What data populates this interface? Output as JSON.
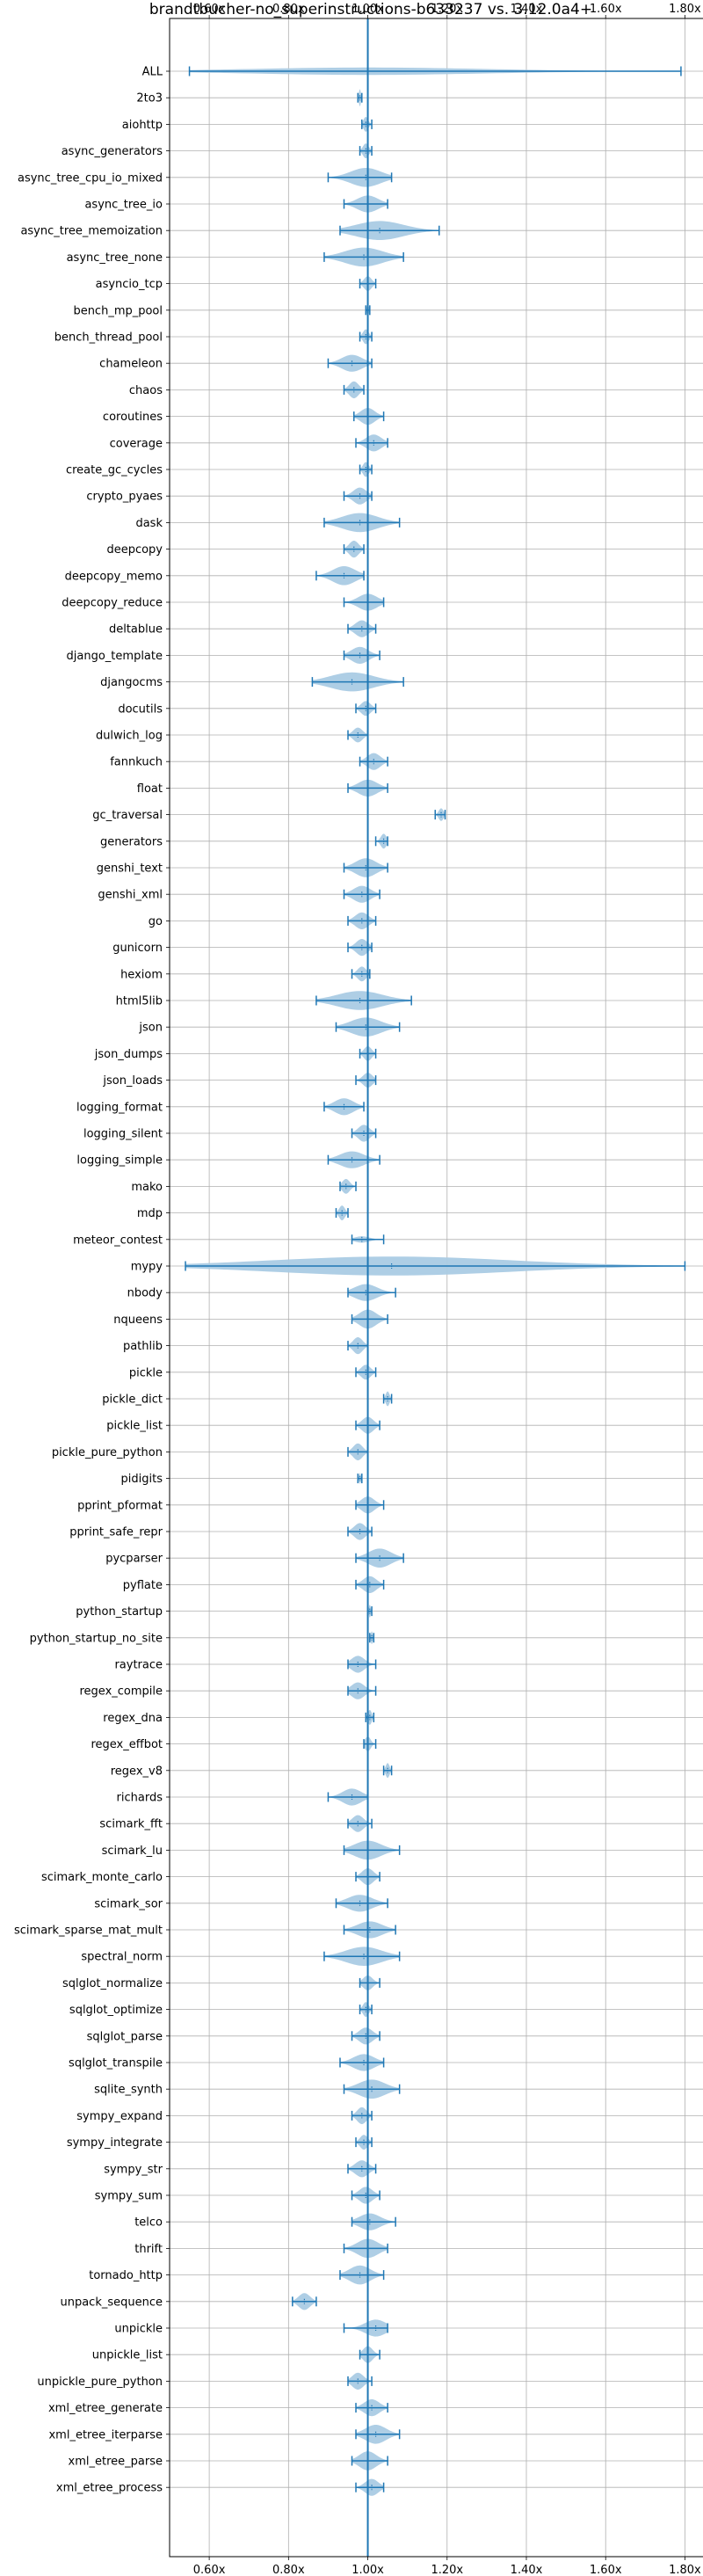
{
  "chart_data": {
    "type": "violin",
    "title": "brandtbucher-no_superinstructions-b633237 vs. 3.12.0a4+",
    "xlabel": "",
    "ylabel": "",
    "xlim": [
      0.5,
      1.85
    ],
    "xticks": [
      0.6,
      0.8,
      1.0,
      1.2,
      1.4,
      1.6,
      1.8
    ],
    "xtick_labels": [
      "0.60x",
      "0.80x",
      "1.00x",
      "1.20x",
      "1.40x",
      "1.60x",
      "1.80x"
    ],
    "tick_positions": [
      "top",
      "bottom"
    ],
    "reference_line": 1.0,
    "grid": true,
    "color": "#1f77b4",
    "fill_color": "#aacbe4",
    "categories": [
      "ALL",
      "2to3",
      "aiohttp",
      "async_generators",
      "async_tree_cpu_io_mixed",
      "async_tree_io",
      "async_tree_memoization",
      "async_tree_none",
      "asyncio_tcp",
      "bench_mp_pool",
      "bench_thread_pool",
      "chameleon",
      "chaos",
      "coroutines",
      "coverage",
      "create_gc_cycles",
      "crypto_pyaes",
      "dask",
      "deepcopy",
      "deepcopy_memo",
      "deepcopy_reduce",
      "deltablue",
      "django_template",
      "djangocms",
      "docutils",
      "dulwich_log",
      "fannkuch",
      "float",
      "gc_traversal",
      "generators",
      "genshi_text",
      "genshi_xml",
      "go",
      "gunicorn",
      "hexiom",
      "html5lib",
      "json",
      "json_dumps",
      "json_loads",
      "logging_format",
      "logging_silent",
      "logging_simple",
      "mako",
      "mdp",
      "meteor_contest",
      "mypy",
      "nbody",
      "nqueens",
      "pathlib",
      "pickle",
      "pickle_dict",
      "pickle_list",
      "pickle_pure_python",
      "pidigits",
      "pprint_pformat",
      "pprint_safe_repr",
      "pycparser",
      "pyflate",
      "python_startup",
      "python_startup_no_site",
      "raytrace",
      "regex_compile",
      "regex_dna",
      "regex_effbot",
      "regex_v8",
      "richards",
      "scimark_fft",
      "scimark_lu",
      "scimark_monte_carlo",
      "scimark_sor",
      "scimark_sparse_mat_mult",
      "spectral_norm",
      "sqlglot_normalize",
      "sqlglot_optimize",
      "sqlglot_parse",
      "sqlglot_transpile",
      "sqlite_synth",
      "sympy_expand",
      "sympy_integrate",
      "sympy_str",
      "sympy_sum",
      "telco",
      "thrift",
      "tornado_http",
      "unpack_sequence",
      "unpickle",
      "unpickle_list",
      "unpickle_pure_python",
      "xml_etree_generate",
      "xml_etree_iterparse",
      "xml_etree_parse",
      "xml_etree_process"
    ],
    "series": [
      {
        "min": 0.55,
        "median": 1.0,
        "max": 1.79,
        "width": 0.35
      },
      {
        "min": 0.975,
        "median": 0.98,
        "max": 0.985,
        "width": 0.8
      },
      {
        "min": 0.985,
        "median": 0.995,
        "max": 1.01,
        "width": 0.7
      },
      {
        "min": 0.98,
        "median": 0.995,
        "max": 1.01,
        "width": 0.7
      },
      {
        "min": 0.9,
        "median": 0.995,
        "max": 1.06,
        "width": 0.9
      },
      {
        "min": 0.94,
        "median": 1.0,
        "max": 1.05,
        "width": 0.8
      },
      {
        "min": 0.93,
        "median": 1.03,
        "max": 1.18,
        "width": 0.9
      },
      {
        "min": 0.89,
        "median": 0.99,
        "max": 1.09,
        "width": 0.9
      },
      {
        "min": 0.98,
        "median": 1.0,
        "max": 1.02,
        "width": 0.7
      },
      {
        "min": 0.995,
        "median": 1.0,
        "max": 1.005,
        "width": 0.6
      },
      {
        "min": 0.98,
        "median": 0.995,
        "max": 1.01,
        "width": 0.7
      },
      {
        "min": 0.9,
        "median": 0.96,
        "max": 1.01,
        "width": 0.8
      },
      {
        "min": 0.94,
        "median": 0.965,
        "max": 0.99,
        "width": 0.8
      },
      {
        "min": 0.965,
        "median": 1.0,
        "max": 1.04,
        "width": 0.8
      },
      {
        "min": 0.97,
        "median": 1.015,
        "max": 1.05,
        "width": 0.8
      },
      {
        "min": 0.98,
        "median": 0.995,
        "max": 1.01,
        "width": 0.7
      },
      {
        "min": 0.94,
        "median": 0.98,
        "max": 1.01,
        "width": 0.8
      },
      {
        "min": 0.89,
        "median": 0.98,
        "max": 1.08,
        "width": 0.9
      },
      {
        "min": 0.94,
        "median": 0.965,
        "max": 0.99,
        "width": 0.8
      },
      {
        "min": 0.87,
        "median": 0.94,
        "max": 0.99,
        "width": 0.9
      },
      {
        "min": 0.94,
        "median": 1.0,
        "max": 1.04,
        "width": 0.8
      },
      {
        "min": 0.95,
        "median": 0.985,
        "max": 1.02,
        "width": 0.8
      },
      {
        "min": 0.94,
        "median": 0.98,
        "max": 1.03,
        "width": 0.8
      },
      {
        "min": 0.86,
        "median": 0.96,
        "max": 1.09,
        "width": 0.9
      },
      {
        "min": 0.97,
        "median": 0.995,
        "max": 1.02,
        "width": 0.7
      },
      {
        "min": 0.95,
        "median": 0.975,
        "max": 1.0,
        "width": 0.7
      },
      {
        "min": 0.98,
        "median": 1.015,
        "max": 1.05,
        "width": 0.8
      },
      {
        "min": 0.95,
        "median": 1.0,
        "max": 1.05,
        "width": 0.8
      },
      {
        "min": 1.17,
        "median": 1.185,
        "max": 1.195,
        "width": 0.6
      },
      {
        "min": 1.02,
        "median": 1.04,
        "max": 1.05,
        "width": 0.7
      },
      {
        "min": 0.94,
        "median": 0.995,
        "max": 1.05,
        "width": 0.9
      },
      {
        "min": 0.94,
        "median": 0.985,
        "max": 1.03,
        "width": 0.8
      },
      {
        "min": 0.95,
        "median": 0.985,
        "max": 1.02,
        "width": 0.8
      },
      {
        "min": 0.95,
        "median": 0.985,
        "max": 1.01,
        "width": 0.8
      },
      {
        "min": 0.96,
        "median": 0.985,
        "max": 1.005,
        "width": 0.7
      },
      {
        "min": 0.87,
        "median": 0.98,
        "max": 1.11,
        "width": 0.9
      },
      {
        "min": 0.92,
        "median": 0.995,
        "max": 1.08,
        "width": 0.9
      },
      {
        "min": 0.98,
        "median": 1.0,
        "max": 1.02,
        "width": 0.7
      },
      {
        "min": 0.97,
        "median": 1.0,
        "max": 1.02,
        "width": 0.7
      },
      {
        "min": 0.89,
        "median": 0.94,
        "max": 0.99,
        "width": 0.8
      },
      {
        "min": 0.96,
        "median": 0.99,
        "max": 1.02,
        "width": 0.8
      },
      {
        "min": 0.9,
        "median": 0.96,
        "max": 1.03,
        "width": 0.8
      },
      {
        "min": 0.93,
        "median": 0.945,
        "max": 0.97,
        "width": 0.7
      },
      {
        "min": 0.92,
        "median": 0.935,
        "max": 0.95,
        "width": 0.7
      },
      {
        "min": 0.96,
        "median": 0.985,
        "max": 1.04,
        "width": 0.3
      },
      {
        "min": 0.54,
        "median": 1.06,
        "max": 1.8,
        "width": 0.9
      },
      {
        "min": 0.95,
        "median": 0.995,
        "max": 1.07,
        "width": 0.8
      },
      {
        "min": 0.96,
        "median": 1.0,
        "max": 1.05,
        "width": 0.9
      },
      {
        "min": 0.95,
        "median": 0.975,
        "max": 1.0,
        "width": 0.8
      },
      {
        "min": 0.97,
        "median": 0.995,
        "max": 1.02,
        "width": 0.7
      },
      {
        "min": 1.04,
        "median": 1.05,
        "max": 1.06,
        "width": 0.7
      },
      {
        "min": 0.97,
        "median": 1.0,
        "max": 1.03,
        "width": 0.8
      },
      {
        "min": 0.95,
        "median": 0.975,
        "max": 1.0,
        "width": 0.8
      },
      {
        "min": 0.975,
        "median": 0.98,
        "max": 0.985,
        "width": 0.5
      },
      {
        "min": 0.97,
        "median": 1.0,
        "max": 1.04,
        "width": 0.8
      },
      {
        "min": 0.95,
        "median": 0.98,
        "max": 1.01,
        "width": 0.8
      },
      {
        "min": 0.97,
        "median": 1.03,
        "max": 1.09,
        "width": 0.9
      },
      {
        "min": 0.97,
        "median": 1.005,
        "max": 1.04,
        "width": 0.8
      },
      {
        "min": 1.0,
        "median": 1.005,
        "max": 1.01,
        "width": 0.6
      },
      {
        "min": 1.005,
        "median": 1.01,
        "max": 1.015,
        "width": 0.6
      },
      {
        "min": 0.95,
        "median": 0.975,
        "max": 1.02,
        "width": 0.8
      },
      {
        "min": 0.95,
        "median": 0.975,
        "max": 1.02,
        "width": 0.8
      },
      {
        "min": 0.995,
        "median": 1.005,
        "max": 1.015,
        "width": 0.7
      },
      {
        "min": 0.99,
        "median": 1.0,
        "max": 1.02,
        "width": 0.7
      },
      {
        "min": 1.04,
        "median": 1.05,
        "max": 1.06,
        "width": 0.7
      },
      {
        "min": 0.9,
        "median": 0.96,
        "max": 1.0,
        "width": 0.8
      },
      {
        "min": 0.95,
        "median": 0.975,
        "max": 1.01,
        "width": 0.8
      },
      {
        "min": 0.94,
        "median": 1.0,
        "max": 1.08,
        "width": 0.9
      },
      {
        "min": 0.97,
        "median": 1.0,
        "max": 1.03,
        "width": 0.8
      },
      {
        "min": 0.92,
        "median": 0.98,
        "max": 1.05,
        "width": 0.8
      },
      {
        "min": 0.94,
        "median": 1.005,
        "max": 1.07,
        "width": 0.8
      },
      {
        "min": 0.89,
        "median": 0.99,
        "max": 1.08,
        "width": 0.9
      },
      {
        "min": 0.98,
        "median": 1.0,
        "max": 1.03,
        "width": 0.7
      },
      {
        "min": 0.98,
        "median": 0.995,
        "max": 1.01,
        "width": 0.7
      },
      {
        "min": 0.96,
        "median": 0.995,
        "max": 1.03,
        "width": 0.8
      },
      {
        "min": 0.93,
        "median": 0.99,
        "max": 1.04,
        "width": 0.8
      },
      {
        "min": 0.94,
        "median": 1.01,
        "max": 1.08,
        "width": 0.9
      },
      {
        "min": 0.96,
        "median": 0.985,
        "max": 1.01,
        "width": 0.8
      },
      {
        "min": 0.97,
        "median": 0.99,
        "max": 1.01,
        "width": 0.7
      },
      {
        "min": 0.95,
        "median": 0.985,
        "max": 1.02,
        "width": 0.8
      },
      {
        "min": 0.96,
        "median": 0.995,
        "max": 1.03,
        "width": 0.8
      },
      {
        "min": 0.96,
        "median": 1.005,
        "max": 1.07,
        "width": 0.8
      },
      {
        "min": 0.94,
        "median": 1.0,
        "max": 1.05,
        "width": 0.9
      },
      {
        "min": 0.93,
        "median": 0.98,
        "max": 1.04,
        "width": 0.9
      },
      {
        "min": 0.81,
        "median": 0.84,
        "max": 0.87,
        "width": 0.8
      },
      {
        "min": 0.94,
        "median": 1.02,
        "max": 1.05,
        "width": 0.8
      },
      {
        "min": 0.98,
        "median": 1.0,
        "max": 1.03,
        "width": 0.8
      },
      {
        "min": 0.95,
        "median": 0.975,
        "max": 1.01,
        "width": 0.8
      },
      {
        "min": 0.97,
        "median": 1.01,
        "max": 1.05,
        "width": 0.8
      },
      {
        "min": 0.97,
        "median": 1.02,
        "max": 1.08,
        "width": 0.9
      },
      {
        "min": 0.96,
        "median": 1.0,
        "max": 1.05,
        "width": 0.9
      },
      {
        "min": 0.97,
        "median": 1.01,
        "max": 1.04,
        "width": 0.8
      }
    ]
  }
}
